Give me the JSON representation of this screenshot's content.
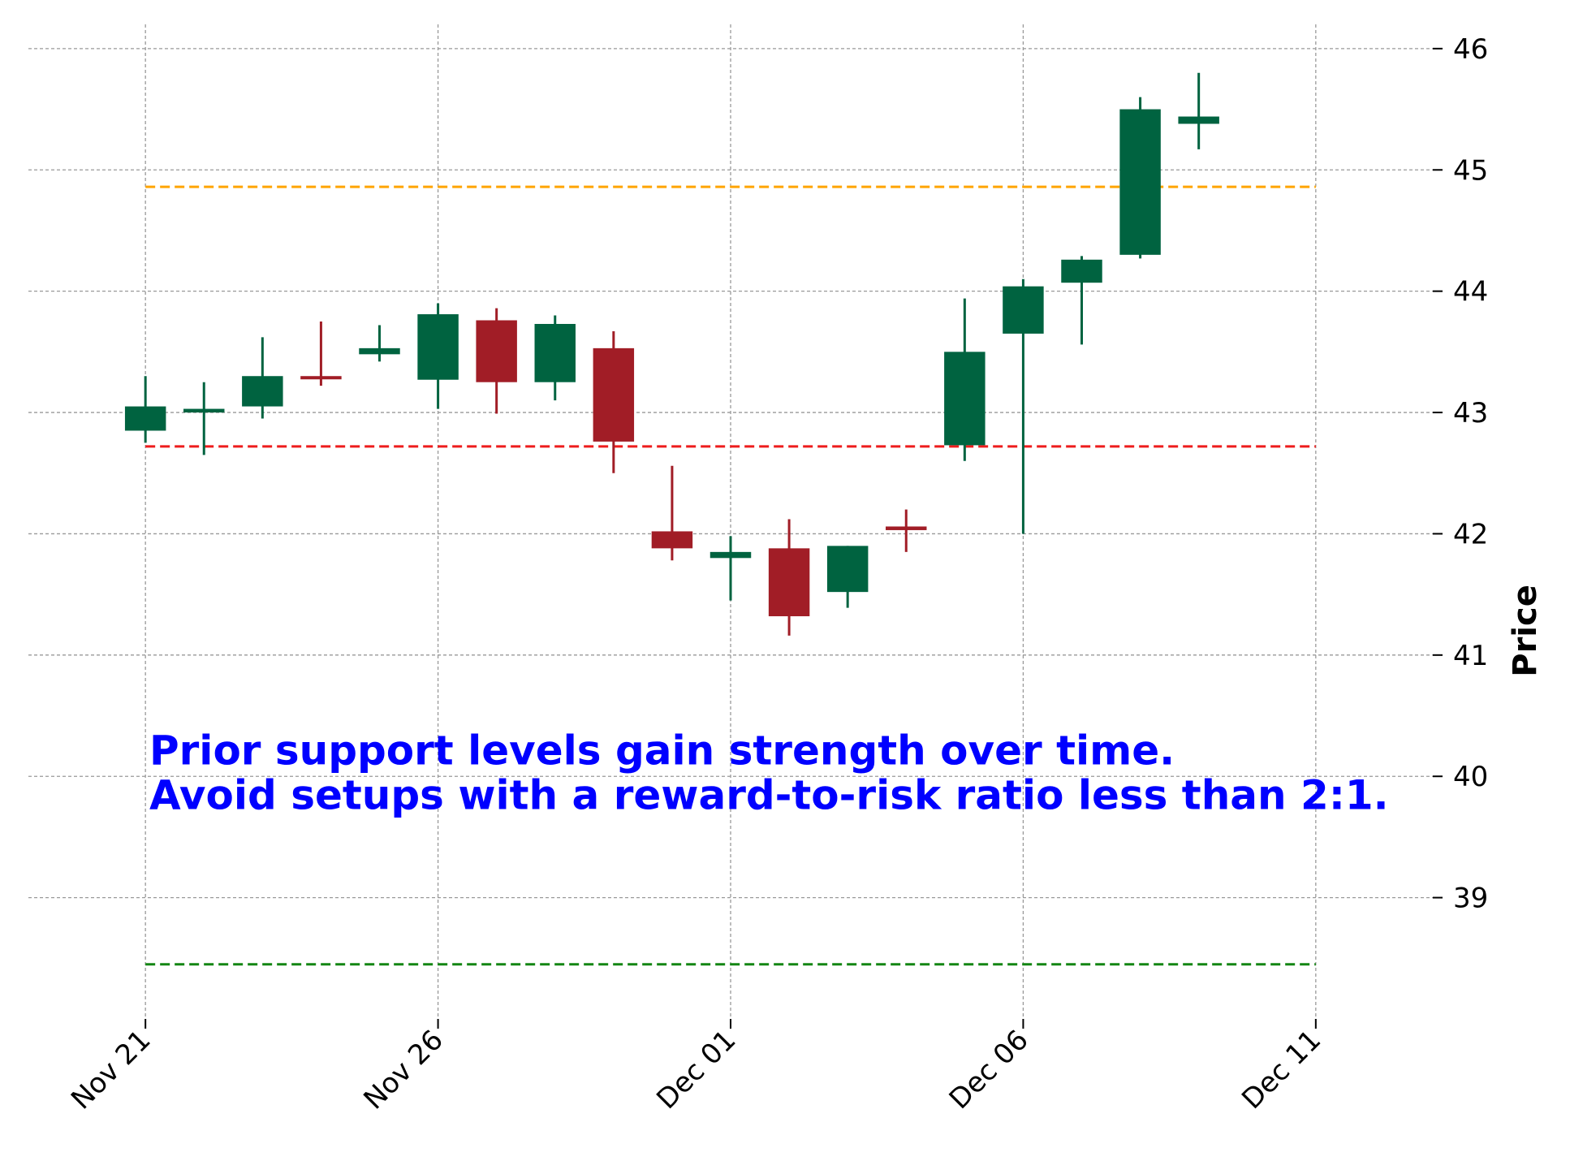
{
  "chart_data": {
    "type": "candlestick",
    "ylabel": "Price",
    "ylim": [
      38.0,
      46.2
    ],
    "y_ticks": [
      39,
      40,
      41,
      42,
      43,
      44,
      45,
      46
    ],
    "y_tick_labels": [
      "39",
      "40",
      "41",
      "42",
      "43",
      "44",
      "45",
      "46"
    ],
    "x_ticks": [
      0,
      5,
      10,
      15,
      20
    ],
    "x_tick_labels": [
      "Nov 21",
      "Nov 26",
      "Dec 01",
      "Dec 06",
      "Dec 11"
    ],
    "xlim": [
      -2,
      22
    ],
    "grid": true,
    "colors": {
      "up": "#006340",
      "down": "#a11d26",
      "grid": "#999999",
      "resistance": "#ffa500",
      "support": "#ee1c1c",
      "target": "#138613",
      "annotation": "#0000ff"
    },
    "candles": [
      {
        "x": 0,
        "open": 42.85,
        "high": 43.3,
        "low": 42.75,
        "close": 43.05
      },
      {
        "x": 1,
        "open": 43.0,
        "high": 43.25,
        "low": 42.65,
        "close": 43.03
      },
      {
        "x": 2,
        "open": 43.05,
        "high": 43.62,
        "low": 42.95,
        "close": 43.3
      },
      {
        "x": 3,
        "open": 43.3,
        "high": 43.75,
        "low": 43.22,
        "close": 43.28
      },
      {
        "x": 4,
        "open": 43.48,
        "high": 43.72,
        "low": 43.42,
        "close": 43.53
      },
      {
        "x": 5,
        "open": 43.27,
        "high": 43.9,
        "low": 43.03,
        "close": 43.81
      },
      {
        "x": 6,
        "open": 43.76,
        "high": 43.86,
        "low": 42.99,
        "close": 43.25
      },
      {
        "x": 7,
        "open": 43.25,
        "high": 43.8,
        "low": 43.1,
        "close": 43.73
      },
      {
        "x": 8,
        "open": 43.53,
        "high": 43.67,
        "low": 42.5,
        "close": 42.76
      },
      {
        "x": 9,
        "open": 42.02,
        "high": 42.56,
        "low": 41.78,
        "close": 41.88
      },
      {
        "x": 10,
        "open": 41.8,
        "high": 41.98,
        "low": 41.45,
        "close": 41.85
      },
      {
        "x": 11,
        "open": 41.88,
        "high": 42.12,
        "low": 41.16,
        "close": 41.32
      },
      {
        "x": 12,
        "open": 41.52,
        "high": 41.9,
        "low": 41.39,
        "close": 41.9
      },
      {
        "x": 13,
        "open": 42.06,
        "high": 42.2,
        "low": 41.85,
        "close": 42.03
      },
      {
        "x": 14,
        "open": 42.73,
        "high": 43.94,
        "low": 42.6,
        "close": 43.5
      },
      {
        "x": 15,
        "open": 43.65,
        "high": 44.1,
        "low": 42.0,
        "close": 44.04
      },
      {
        "x": 16,
        "open": 44.07,
        "high": 44.29,
        "low": 43.56,
        "close": 44.26
      },
      {
        "x": 17,
        "open": 44.3,
        "high": 45.6,
        "low": 44.27,
        "close": 45.5
      },
      {
        "x": 18,
        "open": 45.38,
        "high": 45.8,
        "low": 45.17,
        "close": 45.44
      }
    ],
    "hlines": [
      {
        "y": 44.86,
        "color": "#ffa500",
        "x_from": 0,
        "x_to": 20
      },
      {
        "y": 42.72,
        "color": "#ee1c1c",
        "x_from": 0,
        "x_to": 20
      },
      {
        "y": 38.45,
        "color": "#138613",
        "x_from": 0,
        "x_to": 20
      }
    ],
    "annotations": [
      "Prior support levels gain strength over time.",
      "Avoid setups with a reward-to-risk ratio less than 2:1."
    ]
  }
}
